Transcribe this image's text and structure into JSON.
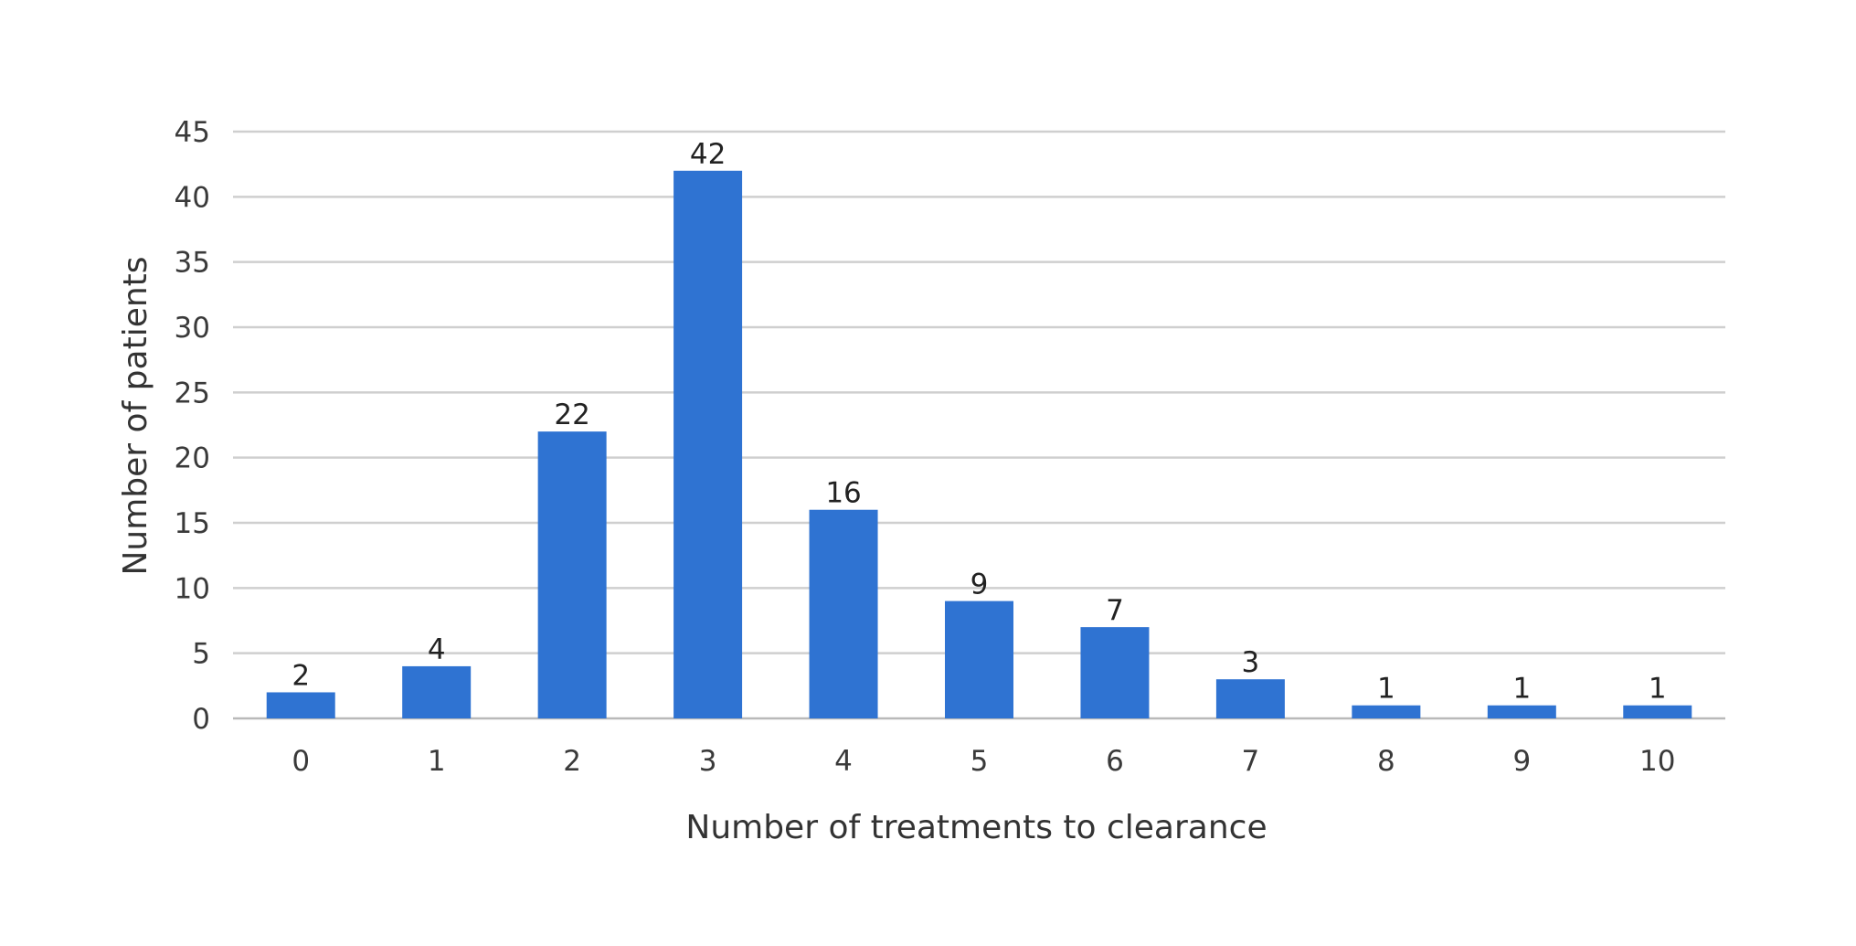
{
  "chart_data": {
    "type": "bar",
    "title": "",
    "xlabel": "Number of treatments to clearance",
    "ylabel": "Number of patients",
    "categories": [
      "0",
      "1",
      "2",
      "3",
      "4",
      "5",
      "6",
      "7",
      "8",
      "9",
      "10"
    ],
    "values": [
      2,
      4,
      22,
      42,
      16,
      9,
      7,
      3,
      1,
      1,
      1
    ],
    "y_ticks": [
      0,
      5,
      10,
      15,
      20,
      25,
      30,
      35,
      40,
      45
    ],
    "ylim": [
      0,
      45
    ],
    "grid": true,
    "legend": "none",
    "data_labels": true,
    "bar_color": "#2f73d2"
  }
}
